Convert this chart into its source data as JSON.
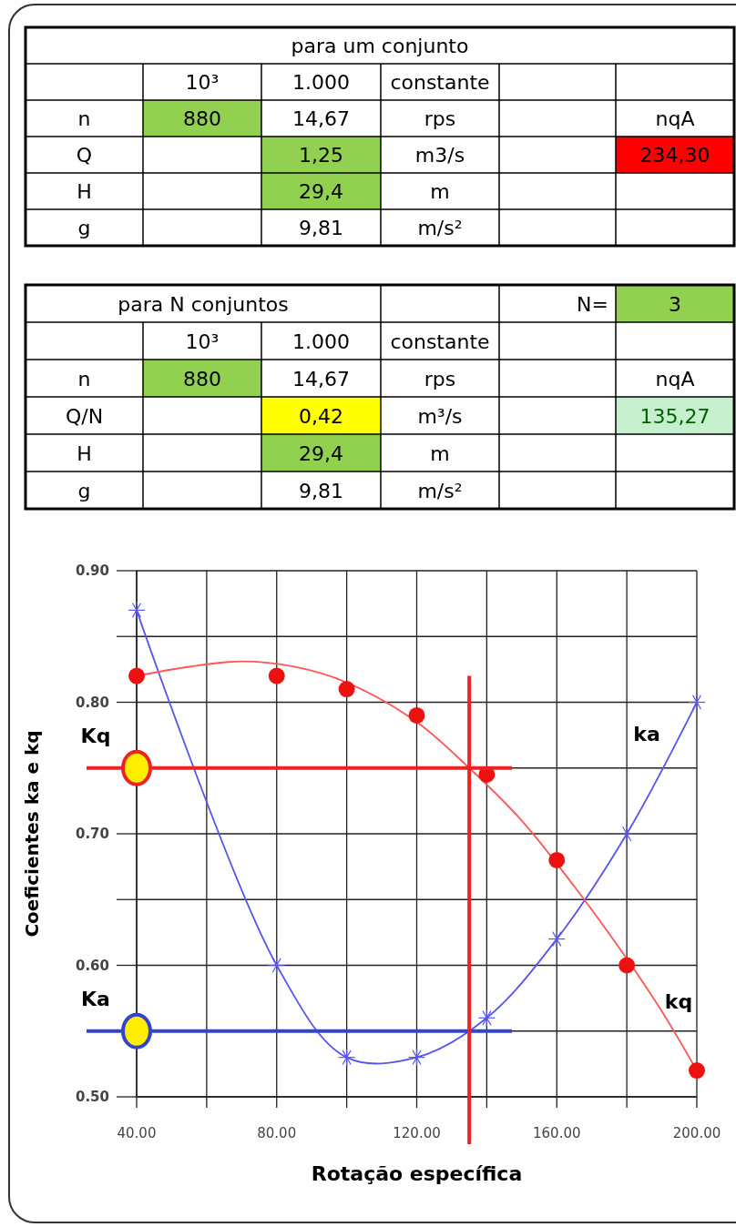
{
  "chart_data": [
    {
      "type": "other",
      "title": "para um conjunto",
      "cell_labels": [
        [
          null,
          "10³",
          "1.000",
          "constante",
          null,
          null
        ],
        [
          "n",
          "880",
          "14,67",
          "rps",
          null,
          "nqA"
        ],
        [
          "Q",
          null,
          "1,25",
          "m3/s",
          null,
          "234,30"
        ],
        [
          "H",
          null,
          "29,4",
          "m",
          null,
          null
        ],
        [
          "g",
          null,
          "9,81",
          "m/s²",
          null,
          null
        ]
      ]
    },
    {
      "type": "other",
      "title": "para N conjuntos",
      "cell_labels": [
        [
          null,
          null,
          null,
          null,
          "N=",
          "3"
        ],
        [
          null,
          "10³",
          "1.000",
          "constante",
          null,
          null
        ],
        [
          "n",
          "880",
          "14,67",
          "rps",
          null,
          "nqA"
        ],
        [
          "Q/N",
          null,
          "0,42",
          "m³/s",
          null,
          "135,27"
        ],
        [
          "H",
          null,
          "29,4",
          "m",
          null,
          null
        ],
        [
          "g",
          null,
          "9,81",
          "m/s²",
          null,
          null
        ]
      ]
    },
    {
      "type": "line",
      "xlabel": "Rotação específica",
      "ylabel": "Coeficientes ka e kq",
      "xlim": [
        40,
        200
      ],
      "ylim": [
        0.5,
        0.9
      ],
      "xticks": [
        {
          "value": 40,
          "label": "40.00"
        },
        {
          "value": 60,
          "label": null
        },
        {
          "value": 80,
          "label": "80.00"
        },
        {
          "value": 100,
          "label": null
        },
        {
          "value": 120,
          "label": "120.00"
        },
        {
          "value": 140,
          "label": null
        },
        {
          "value": 160,
          "label": "160.00"
        },
        {
          "value": 180,
          "label": null
        },
        {
          "value": 200,
          "label": "200.00"
        }
      ],
      "yticks": [
        {
          "value": 0.5,
          "label": "0.50"
        },
        {
          "value": 0.55,
          "label": null
        },
        {
          "value": 0.6,
          "label": "0.60"
        },
        {
          "value": 0.65,
          "label": null
        },
        {
          "value": 0.7,
          "label": "0.70"
        },
        {
          "value": 0.75,
          "label": null
        },
        {
          "value": 0.8,
          "label": "0.80"
        },
        {
          "value": 0.85,
          "label": null
        },
        {
          "value": 0.9,
          "label": "0.90"
        }
      ],
      "grid": true,
      "series": [
        {
          "type": "line",
          "name": "ka",
          "color": "#5555ee",
          "marker": "cross",
          "x": [
            40,
            80,
            100,
            120,
            140,
            160,
            180,
            200
          ],
          "values": [
            0.87,
            0.6,
            0.53,
            0.53,
            0.56,
            0.62,
            0.7,
            0.8
          ]
        },
        {
          "type": "line",
          "color": "#ff5555",
          "marker": "none",
          "x": [
            40,
            55,
            70,
            85,
            100,
            120,
            135,
            150,
            165,
            180,
            190,
            200
          ],
          "values": [
            0.82,
            0.827,
            0.831,
            0.827,
            0.815,
            0.785,
            0.75,
            0.71,
            0.66,
            0.605,
            0.565,
            0.52
          ]
        },
        {
          "type": "scatter",
          "name": "kq",
          "color": "#ee1111",
          "marker": "circle",
          "x": [
            40,
            80,
            100,
            120,
            140,
            160,
            180,
            200
          ],
          "values": [
            0.82,
            0.82,
            0.81,
            0.79,
            0.745,
            0.68,
            0.6,
            0.52
          ]
        }
      ],
      "ref_lines": [
        {
          "axis": "y",
          "value": 0.75,
          "label": "Kq",
          "color": "#ee2222"
        },
        {
          "axis": "y",
          "value": 0.55,
          "label": "Ka",
          "color": "#3344cc"
        },
        {
          "axis": "x",
          "value": 135,
          "color": "#ee2222"
        }
      ]
    }
  ]
}
